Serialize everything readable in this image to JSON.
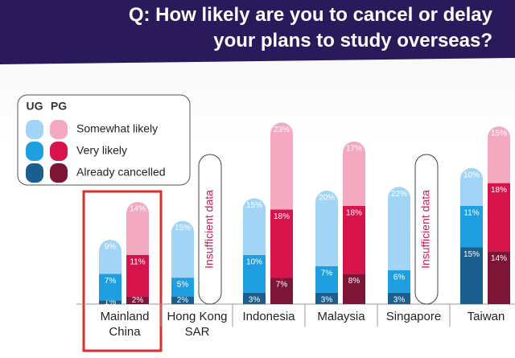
{
  "chart_data": {
    "type": "grouped-stacked-bar",
    "title_lines": [
      "Q: How likely are you to cancel or delay",
      "your plans to study overseas?"
    ],
    "groups": [
      "UG",
      "PG"
    ],
    "categories": [
      "Mainland China",
      "Hong Kong SAR",
      "Indonesia",
      "Malaysia",
      "Singapore",
      "Taiwan"
    ],
    "highlight": "Mainland China",
    "missing_note": "Insufficient data",
    "series": [
      {
        "name": "Already cancelled",
        "colors": [
          "#1b5f8f",
          "#7c1536"
        ],
        "values": [
          [
            1,
            2,
            3,
            3,
            3,
            15
          ],
          [
            2,
            null,
            7,
            8,
            null,
            14
          ]
        ],
        "value_labels": [
          [
            "1%",
            "2%",
            "3%",
            "3%",
            "3%",
            "15%"
          ],
          [
            "2%",
            null,
            "7%",
            "8%",
            null,
            "14%"
          ]
        ]
      },
      {
        "name": "Very likely",
        "colors": [
          "#1f9fe0",
          "#d6144b"
        ],
        "values": [
          [
            7,
            5,
            10,
            7,
            6,
            11
          ],
          [
            11,
            null,
            18,
            18,
            null,
            18
          ]
        ],
        "value_labels": [
          [
            "7%",
            "5%",
            "10%",
            "7%",
            "6%",
            "11%"
          ],
          [
            "11%",
            null,
            "18%",
            "18%",
            null,
            "18%"
          ]
        ]
      },
      {
        "name": "Somewhat likely",
        "colors": [
          "#a2d5f5",
          "#f5a9c1"
        ],
        "values": [
          [
            9,
            15,
            15,
            20,
            22,
            10
          ],
          [
            14,
            null,
            23,
            17,
            null,
            15
          ]
        ],
        "value_labels": [
          [
            "9%",
            "15%",
            "15%",
            "20%",
            "22%",
            "10%"
          ],
          [
            "14%",
            null,
            "23%",
            "17%",
            null,
            "15%"
          ]
        ]
      }
    ]
  }
}
